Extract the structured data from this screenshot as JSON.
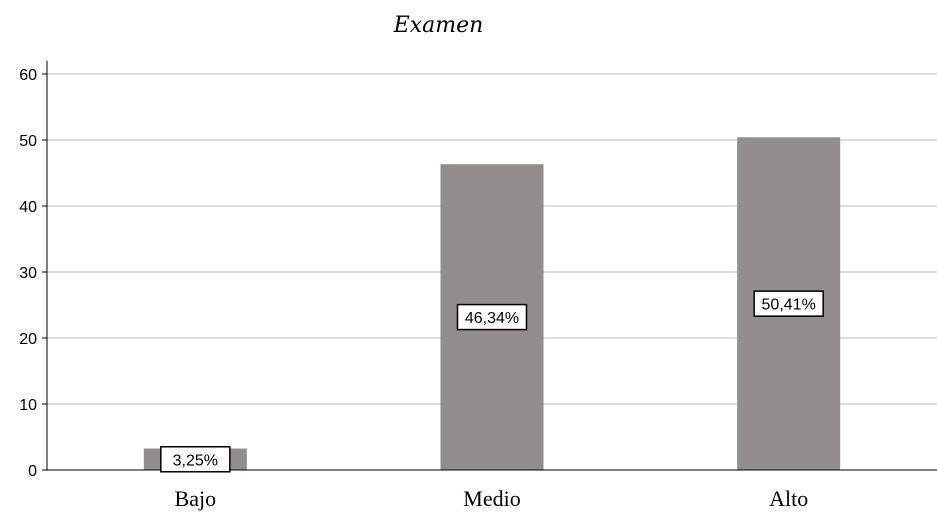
{
  "chart_data": {
    "type": "bar",
    "title": "Examen",
    "xlabel": "",
    "ylabel": "",
    "categories": [
      "Bajo",
      "Medio",
      "Alto"
    ],
    "values": [
      3.25,
      46.34,
      50.41
    ],
    "data_labels": [
      "3,25%",
      "46,34%",
      "50,41%"
    ],
    "ylim": [
      0,
      62
    ],
    "yticks": [
      0,
      10,
      20,
      30,
      40,
      50,
      60
    ],
    "grid": true,
    "legend": "none",
    "colors": {
      "bar": "#938e8c",
      "grid": "#c8c8c8",
      "axis": "#000000",
      "label_border": "#000000"
    }
  }
}
